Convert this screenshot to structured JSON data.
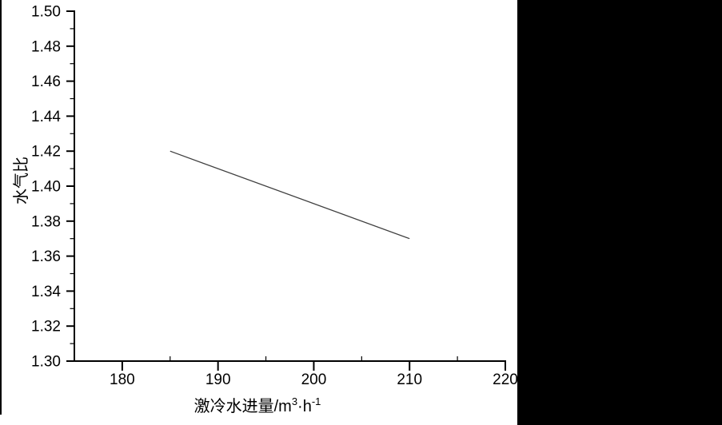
{
  "chart_data": {
    "type": "line",
    "title": "",
    "xlabel": "激冷水进量/m³·h⁻¹",
    "xlabel_parts": [
      {
        "text": "激冷水进量/m"
      },
      {
        "text": "3",
        "sup": true
      },
      {
        "text": "·h"
      },
      {
        "text": "-1",
        "sup": true
      }
    ],
    "ylabel": "水气比",
    "xlim": [
      175,
      220
    ],
    "ylim": [
      1.3,
      1.5
    ],
    "x_major_ticks": [
      180,
      190,
      200,
      210,
      220
    ],
    "x_tick_labels": [
      "180",
      "190",
      "200",
      "210",
      "220"
    ],
    "x_minor_ticks": [
      185,
      195,
      205,
      215
    ],
    "y_major_ticks": [
      1.3,
      1.32,
      1.34,
      1.36,
      1.38,
      1.4,
      1.42,
      1.44,
      1.46,
      1.48,
      1.5
    ],
    "y_tick_labels": [
      "1.30",
      "1.32",
      "1.34",
      "1.36",
      "1.38",
      "1.40",
      "1.42",
      "1.44",
      "1.46",
      "1.48",
      "1.50"
    ],
    "y_minor_ticks": [
      1.31,
      1.33,
      1.35,
      1.37,
      1.39,
      1.41,
      1.43,
      1.45,
      1.47,
      1.49
    ],
    "grid": false,
    "legend_position": "none",
    "axis_color": "#000000",
    "series": [
      {
        "name": "水气比",
        "x": [
          185,
          210
        ],
        "y": [
          1.42,
          1.37
        ],
        "color": "#3f3f3f"
      }
    ]
  },
  "scan_artifacts": {
    "right_black_region_color": "#000000",
    "left_edge_line_color": "#000000"
  }
}
